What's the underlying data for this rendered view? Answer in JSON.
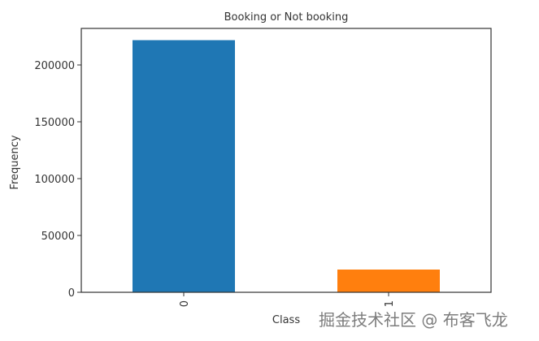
{
  "chart_data": {
    "type": "bar",
    "title": "Booking or Not booking",
    "xlabel": "Class",
    "ylabel": "Frequency",
    "categories": [
      "0",
      "1"
    ],
    "values": [
      221800,
      20000
    ],
    "colors": [
      "#1f77b4",
      "#ff7f0e"
    ],
    "ylim": [
      0,
      230000
    ],
    "yticks": [
      0,
      50000,
      100000,
      150000,
      200000
    ],
    "ytick_labels": [
      "0",
      "50000",
      "100000",
      "150000",
      "200000"
    ],
    "xtick_rotation": 90,
    "grid": false,
    "legend": "none"
  },
  "watermark": "掘金技术社区 @ 布客飞龙"
}
